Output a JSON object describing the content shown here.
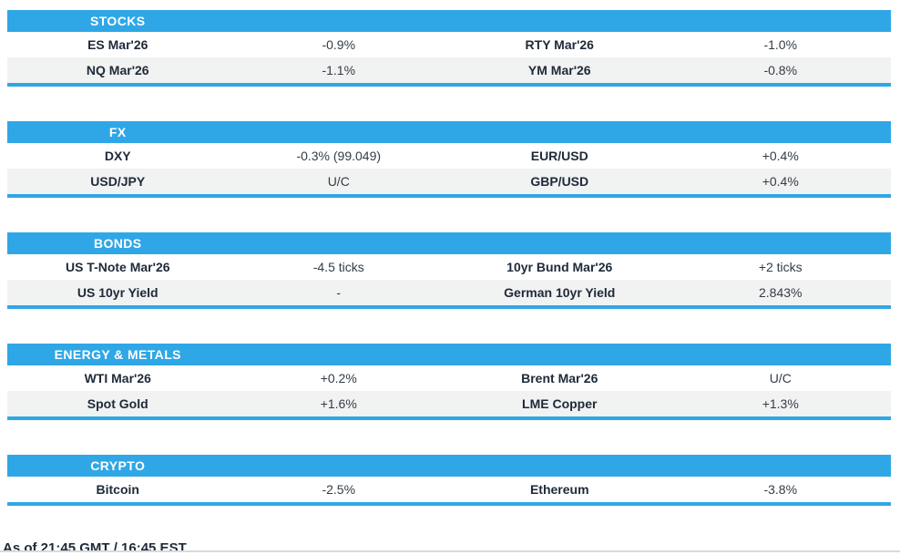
{
  "colors": {
    "accent": "#2FA7E6",
    "alt_row": "#F1F2F2",
    "label_text": "#1E2A38",
    "value_text": "#333C46",
    "bottom_rule": "#D8DADB"
  },
  "sections": [
    {
      "title": "STOCKS",
      "rows": [
        [
          "ES Mar'26",
          "-0.9%",
          "RTY Mar'26",
          "-1.0%"
        ],
        [
          "NQ Mar'26",
          "-1.1%",
          "YM Mar'26",
          "-0.8%"
        ]
      ]
    },
    {
      "title": "FX",
      "rows": [
        [
          "DXY",
          "-0.3% (99.049)",
          "EUR/USD",
          "+0.4%"
        ],
        [
          "USD/JPY",
          "U/C",
          "GBP/USD",
          "+0.4%"
        ]
      ]
    },
    {
      "title": "BONDS",
      "rows": [
        [
          "US T-Note Mar'26",
          "-4.5 ticks",
          "10yr Bund Mar'26",
          "+2 ticks"
        ],
        [
          "US 10yr Yield",
          "-",
          "German 10yr Yield",
          "2.843%"
        ]
      ]
    },
    {
      "title": "ENERGY & METALS",
      "rows": [
        [
          "WTI Mar'26",
          "+0.2%",
          "Brent Mar'26",
          "U/C"
        ],
        [
          "Spot Gold",
          "+1.6%",
          "LME Copper",
          "+1.3%"
        ]
      ]
    },
    {
      "title": "CRYPTO",
      "rows": [
        [
          "Bitcoin",
          "-2.5%",
          "Ethereum",
          "-3.8%"
        ]
      ]
    }
  ],
  "footer": {
    "text": "As of 21:45 GMT / 16:45 EST"
  }
}
